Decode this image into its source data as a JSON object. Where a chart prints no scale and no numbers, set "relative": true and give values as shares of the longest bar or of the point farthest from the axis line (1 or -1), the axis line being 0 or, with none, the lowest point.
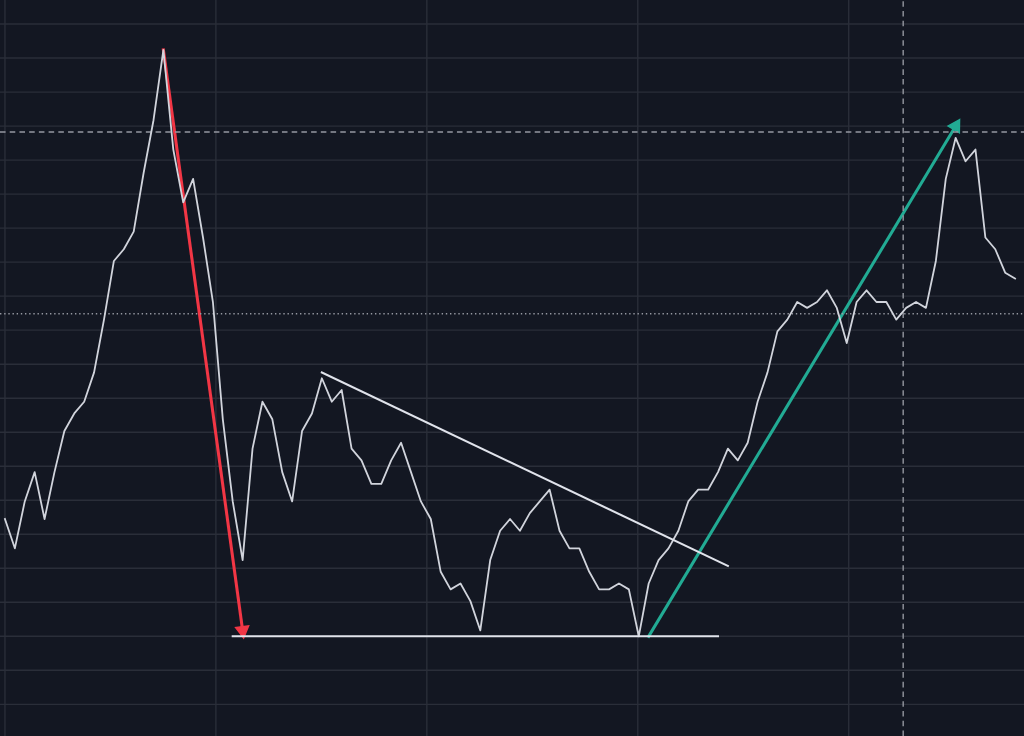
{
  "chart_data": {
    "type": "line",
    "relative": true,
    "grid": true,
    "legend": false,
    "categories": [
      null,
      null,
      null,
      null,
      null,
      null,
      null,
      null,
      null,
      null,
      null,
      null,
      null,
      null,
      null,
      null,
      null,
      null,
      null,
      null,
      null,
      null,
      null,
      null,
      null,
      null,
      null,
      null,
      null,
      null,
      null,
      null,
      null,
      null,
      null,
      null,
      null,
      null,
      null,
      null,
      null,
      null,
      null,
      null,
      null,
      null,
      null,
      null,
      null,
      null,
      null,
      null,
      null,
      null,
      null,
      null,
      null,
      null,
      null,
      null,
      null,
      null,
      null,
      null,
      null,
      null,
      null,
      null,
      null,
      null,
      null,
      null,
      null,
      null,
      null,
      null,
      null,
      null,
      null,
      null,
      null,
      null,
      null,
      null,
      null,
      null,
      null,
      null,
      null,
      null,
      null,
      null,
      null,
      null,
      null,
      null,
      null,
      null,
      null,
      null,
      null,
      null,
      null
    ],
    "series": [
      {
        "color": "#d1d4dc",
        "values": [
          0.2,
          0.15,
          0.23,
          0.28,
          0.2,
          0.28,
          0.35,
          0.38,
          0.4,
          0.45,
          0.54,
          0.64,
          0.66,
          0.69,
          0.79,
          0.88,
          1.0,
          0.83,
          0.74,
          0.78,
          0.68,
          0.57,
          0.37,
          0.23,
          0.13,
          0.32,
          0.4,
          0.37,
          0.28,
          0.23,
          0.35,
          0.38,
          0.44,
          0.4,
          0.42,
          0.32,
          0.3,
          0.26,
          0.26,
          0.3,
          0.33,
          0.28,
          0.23,
          0.2,
          0.11,
          0.08,
          0.09,
          0.06,
          0.01,
          0.13,
          0.18,
          0.2,
          0.18,
          0.21,
          0.23,
          0.25,
          0.18,
          0.15,
          0.15,
          0.11,
          0.08,
          0.08,
          0.09,
          0.08,
          0,
          0.09,
          0.13,
          0.15,
          0.18,
          0.23,
          0.25,
          0.25,
          0.28,
          0.32,
          0.3,
          0.33,
          0.4,
          0.45,
          0.52,
          0.54,
          0.57,
          0.56,
          0.57,
          0.59,
          0.56,
          0.5,
          0.57,
          0.59,
          0.57,
          0.57,
          0.54,
          0.56,
          0.57,
          0.56,
          0.64,
          0.78,
          0.85,
          0.81,
          0.83,
          0.68,
          0.66,
          0.62,
          0.61
        ]
      },
      {
        "type": "line",
        "color": "#e0e3eb",
        "values": [
          null,
          null,
          null,
          null,
          null,
          null,
          null,
          null,
          null,
          null,
          null,
          null,
          null,
          null,
          null,
          null,
          null,
          null,
          null,
          null,
          null,
          null,
          null,
          null,
          null,
          null,
          null,
          null,
          null,
          null,
          null,
          null,
          0.45,
          null,
          null,
          null,
          null,
          null,
          null,
          null,
          null,
          null,
          null,
          null,
          null,
          null,
          null,
          null,
          null,
          null,
          null,
          null,
          null,
          null,
          null,
          null,
          null,
          null,
          null,
          null,
          null,
          null,
          null,
          null,
          null,
          null,
          null,
          null,
          null,
          null,
          null,
          null,
          null,
          0.12,
          null,
          null,
          null,
          null,
          null,
          null,
          null,
          null,
          null,
          null,
          null,
          null,
          null,
          null,
          null,
          null,
          null,
          null,
          null,
          null,
          null,
          null,
          null,
          null,
          null,
          null,
          null,
          null,
          null
        ]
      },
      {
        "type": "line",
        "color": "#e0e3eb",
        "values": [
          null,
          null,
          null,
          null,
          null,
          null,
          null,
          null,
          null,
          null,
          null,
          null,
          null,
          null,
          null,
          null,
          null,
          null,
          null,
          null,
          null,
          null,
          null,
          0,
          null,
          null,
          null,
          null,
          null,
          null,
          null,
          null,
          null,
          null,
          null,
          null,
          null,
          null,
          null,
          null,
          null,
          null,
          null,
          null,
          null,
          null,
          null,
          null,
          null,
          null,
          null,
          null,
          null,
          null,
          null,
          null,
          null,
          null,
          null,
          null,
          null,
          null,
          null,
          null,
          null,
          null,
          null,
          null,
          null,
          null,
          null,
          null,
          0,
          null,
          null,
          null,
          null,
          null,
          null,
          null,
          null,
          null,
          null,
          null,
          null,
          null,
          null,
          null,
          null,
          null,
          null,
          null,
          null,
          null,
          null,
          null,
          null,
          null,
          null,
          null,
          null,
          null,
          null
        ]
      },
      {
        "type": "line",
        "color": "#f23645",
        "marker": "triangle",
        "values": [
          null,
          null,
          null,
          null,
          null,
          null,
          null,
          null,
          null,
          null,
          null,
          null,
          null,
          null,
          null,
          null,
          1.0,
          null,
          null,
          null,
          null,
          null,
          null,
          null,
          0.01,
          null,
          null,
          null,
          null,
          null,
          null,
          null,
          null,
          null,
          null,
          null,
          null,
          null,
          null,
          null,
          null,
          null,
          null,
          null,
          null,
          null,
          null,
          null,
          null,
          null,
          null,
          null,
          null,
          null,
          null,
          null,
          null,
          null,
          null,
          null,
          null,
          null,
          null,
          null,
          null,
          null,
          null,
          null,
          null,
          null,
          null,
          null,
          null,
          null,
          null,
          null,
          null,
          null,
          null,
          null,
          null,
          null,
          null,
          null,
          null,
          null,
          null,
          null,
          null,
          null,
          null,
          null,
          null,
          null,
          null,
          null,
          null,
          null,
          null,
          null,
          null,
          null,
          null
        ]
      },
      {
        "type": "line",
        "color": "#22ab94",
        "marker": "triangle",
        "values": [
          null,
          null,
          null,
          null,
          null,
          null,
          null,
          null,
          null,
          null,
          null,
          null,
          null,
          null,
          null,
          null,
          null,
          null,
          null,
          null,
          null,
          null,
          null,
          null,
          null,
          null,
          null,
          null,
          null,
          null,
          null,
          null,
          null,
          null,
          null,
          null,
          null,
          null,
          null,
          null,
          null,
          null,
          null,
          null,
          null,
          null,
          null,
          null,
          null,
          null,
          null,
          null,
          null,
          null,
          null,
          null,
          null,
          null,
          null,
          null,
          null,
          null,
          null,
          null,
          null,
          0,
          null,
          null,
          null,
          null,
          null,
          null,
          null,
          null,
          null,
          null,
          null,
          null,
          null,
          null,
          null,
          null,
          null,
          null,
          null,
          null,
          null,
          null,
          null,
          null,
          null,
          null,
          null,
          null,
          null,
          null,
          0.87,
          null,
          null,
          null,
          null,
          null,
          null
        ]
      }
    ],
    "ref_lines": [
      {
        "axis": "y",
        "value": 0.86,
        "color": "#9598a1",
        "line_style": "dashed"
      },
      {
        "axis": "y",
        "value": 0.55,
        "color": "#9598a1",
        "line_style": "dotted"
      }
    ]
  }
}
